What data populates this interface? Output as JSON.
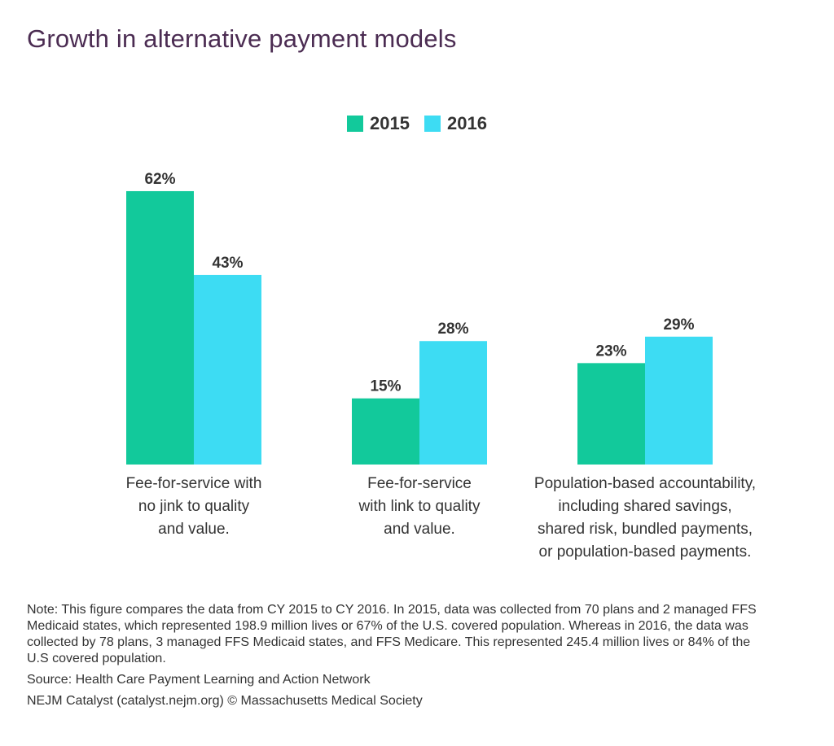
{
  "chart_data": {
    "type": "bar",
    "title": "Growth in alternative payment models",
    "categories": [
      "Fee-for-service with no jink to quality and value.",
      "Fee-for-service with link to quality and value.",
      "Population-based accountability, including shared savings, shared risk, bundled payments, or population-based payments."
    ],
    "category_lines": [
      [
        "Fee-for-service with",
        "no jink to quality",
        "and value."
      ],
      [
        "Fee-for-service",
        "with link to quality",
        "and value."
      ],
      [
        "Population-based accountability,",
        "including shared savings,",
        "shared risk, bundled payments,",
        "or population-based payments."
      ]
    ],
    "series": [
      {
        "name": "2015",
        "color": "#12c99b",
        "values": [
          62,
          15,
          23
        ],
        "labels": [
          "62%",
          "15%",
          "23%"
        ]
      },
      {
        "name": "2016",
        "color": "#3ddcf3",
        "values": [
          43,
          28,
          29
        ],
        "labels": [
          "43%",
          "28%",
          "29%"
        ]
      }
    ],
    "ylim": [
      0,
      70
    ],
    "legend_position": "top-center",
    "grid": false,
    "xlabel": "",
    "ylabel": ""
  },
  "notes": {
    "note": "Note: This figure compares the data from CY 2015 to CY 2016. In 2015, data was collected from 70 plans and 2 managed FFS Medicaid states, which represented 198.9 million lives or 67% of the U.S. covered population. Whereas in 2016, the data was collected by 78 plans, 3 managed FFS Medicaid states, and FFS Medicare. This represented 245.4 million lives or 84% of the U.S covered population.",
    "source": "Source: Health Care Payment Learning and Action Network",
    "credit": "NEJM Catalyst (catalyst.nejm.org) © Massachusetts Medical Society"
  }
}
